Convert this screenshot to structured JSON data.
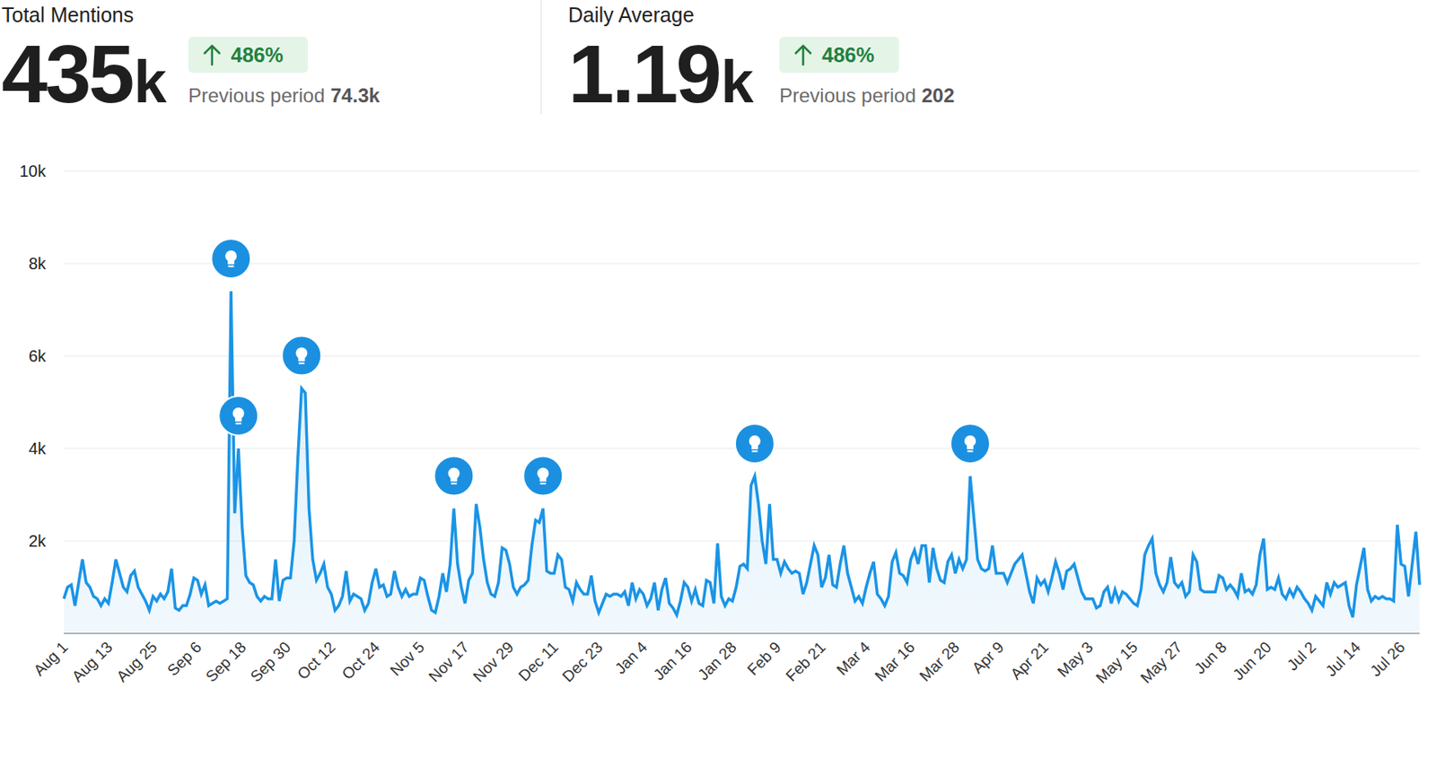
{
  "header": {
    "blocks": [
      {
        "title": "Total Mentions",
        "value": "435k",
        "change": "486%",
        "previous_label": "Previous period",
        "previous_value": "74.3k"
      },
      {
        "title": "Daily Average",
        "value": "1.19k",
        "change": "486%",
        "previous_label": "Previous period",
        "previous_value": "202"
      }
    ]
  },
  "chart_data": {
    "type": "area",
    "color": "#1a94e6",
    "grid": true,
    "ylim": [
      0,
      10000
    ],
    "yticks": [
      {
        "value": 2000,
        "label": "2k"
      },
      {
        "value": 4000,
        "label": "4k"
      },
      {
        "value": 6000,
        "label": "6k"
      },
      {
        "value": 8000,
        "label": "8k"
      },
      {
        "value": 10000,
        "label": "10k"
      }
    ],
    "events": [
      45,
      47,
      64,
      105,
      129,
      186,
      244
    ],
    "categories": [
      "Aug 1",
      null,
      null,
      null,
      null,
      null,
      null,
      null,
      null,
      null,
      null,
      null,
      "Aug 13",
      null,
      null,
      null,
      null,
      null,
      null,
      null,
      null,
      null,
      null,
      null,
      "Aug 25",
      null,
      null,
      null,
      null,
      null,
      null,
      null,
      null,
      null,
      null,
      null,
      "Sep 6",
      null,
      null,
      null,
      null,
      null,
      null,
      null,
      null,
      null,
      null,
      null,
      "Sep 18",
      null,
      null,
      null,
      null,
      null,
      null,
      null,
      null,
      null,
      null,
      null,
      "Sep 30",
      null,
      null,
      null,
      null,
      null,
      null,
      null,
      null,
      null,
      null,
      null,
      "Oct 12",
      null,
      null,
      null,
      null,
      null,
      null,
      null,
      null,
      null,
      null,
      null,
      "Oct 24",
      null,
      null,
      null,
      null,
      null,
      null,
      null,
      null,
      null,
      null,
      null,
      "Nov 5",
      null,
      null,
      null,
      null,
      null,
      null,
      null,
      null,
      null,
      null,
      null,
      "Nov 17",
      null,
      null,
      null,
      null,
      null,
      null,
      null,
      null,
      null,
      null,
      null,
      "Nov 29",
      null,
      null,
      null,
      null,
      null,
      null,
      null,
      null,
      null,
      null,
      null,
      "Dec 11",
      null,
      null,
      null,
      null,
      null,
      null,
      null,
      null,
      null,
      null,
      null,
      "Dec 23",
      null,
      null,
      null,
      null,
      null,
      null,
      null,
      null,
      null,
      null,
      null,
      "Jan 4",
      null,
      null,
      null,
      null,
      null,
      null,
      null,
      null,
      null,
      null,
      null,
      "Jan 16",
      null,
      null,
      null,
      null,
      null,
      null,
      null,
      null,
      null,
      null,
      null,
      "Jan 28",
      null,
      null,
      null,
      null,
      null,
      null,
      null,
      null,
      null,
      null,
      null,
      "Feb 9",
      null,
      null,
      null,
      null,
      null,
      null,
      null,
      null,
      null,
      null,
      null,
      "Feb 21",
      null,
      null,
      null,
      null,
      null,
      null,
      null,
      null,
      null,
      null,
      null,
      "Mar 4",
      null,
      null,
      null,
      null,
      null,
      null,
      null,
      null,
      null,
      null,
      null,
      "Mar 16",
      null,
      null,
      null,
      null,
      null,
      null,
      null,
      null,
      null,
      null,
      null,
      "Mar 28",
      null,
      null,
      null,
      null,
      null,
      null,
      null,
      null,
      null,
      null,
      null,
      "Apr 9",
      null,
      null,
      null,
      null,
      null,
      null,
      null,
      null,
      null,
      null,
      null,
      "Apr 21",
      null,
      null,
      null,
      null,
      null,
      null,
      null,
      null,
      null,
      null,
      null,
      "May 3",
      null,
      null,
      null,
      null,
      null,
      null,
      null,
      null,
      null,
      null,
      null,
      "May 15",
      null,
      null,
      null,
      null,
      null,
      null,
      null,
      null,
      null,
      null,
      null,
      "May 27",
      null,
      null,
      null,
      null,
      null,
      null,
      null,
      null,
      null,
      null,
      null,
      "Jun 8",
      null,
      null,
      null,
      null,
      null,
      null,
      null,
      null,
      null,
      null,
      null,
      "Jun 20",
      null,
      null,
      null,
      null,
      null,
      null,
      null,
      null,
      null,
      null,
      null,
      "Jul 2",
      null,
      null,
      null,
      null,
      null,
      null,
      null,
      null,
      null,
      null,
      null,
      "Jul 14",
      null,
      null,
      null,
      null,
      null,
      null,
      null,
      null,
      null,
      null,
      null,
      "Jul 26",
      null,
      null,
      null,
      null,
      null
    ],
    "values": [
      750,
      1000,
      1050,
      600,
      1100,
      1600,
      1100,
      1000,
      800,
      750,
      600,
      750,
      650,
      1100,
      1600,
      1300,
      1000,
      900,
      1250,
      1350,
      1000,
      850,
      700,
      500,
      800,
      700,
      850,
      750,
      900,
      1400,
      550,
      500,
      600,
      600,
      850,
      1200,
      1150,
      850,
      1050,
      600,
      650,
      700,
      650,
      700,
      750,
      7400,
      2600,
      4000,
      2300,
      1250,
      1100,
      1050,
      800,
      700,
      800,
      750,
      750,
      1600,
      700,
      1150,
      1200,
      1200,
      2000,
      3800,
      5300,
      5200,
      2700,
      1600,
      1150,
      1300,
      1500,
      1000,
      850,
      500,
      600,
      800,
      1350,
      700,
      850,
      800,
      750,
      500,
      650,
      1100,
      1400,
      1000,
      1050,
      800,
      850,
      1350,
      1000,
      800,
      950,
      800,
      850,
      850,
      1200,
      1150,
      800,
      500,
      450,
      800,
      1300,
      900,
      1500,
      2700,
      1500,
      1000,
      650,
      1150,
      1300,
      2800,
      2300,
      1600,
      1100,
      850,
      800,
      1100,
      1850,
      1800,
      1500,
      1000,
      850,
      1000,
      1050,
      1150,
      1900,
      2450,
      2400,
      2700,
      1350,
      1300,
      1300,
      1700,
      1600,
      1000,
      950,
      700,
      1100,
      950,
      850,
      850,
      1250,
      700,
      450,
      650,
      850,
      800,
      850,
      850,
      800,
      900,
      600,
      1100,
      750,
      950,
      850,
      600,
      750,
      1100,
      500,
      950,
      1200,
      650,
      550,
      400,
      700,
      1100,
      1000,
      700,
      950,
      650,
      600,
      1150,
      1100,
      650,
      1950,
      800,
      600,
      750,
      700,
      1000,
      1450,
      1500,
      1400,
      3200,
      3400,
      2800,
      2000,
      1500,
      2800,
      1600,
      1600,
      1300,
      1550,
      1400,
      1300,
      1350,
      1300,
      850,
      1100,
      1500,
      1900,
      1700,
      1000,
      1200,
      1700,
      1050,
      1000,
      1500,
      1900,
      1300,
      1000,
      700,
      800,
      650,
      1000,
      1300,
      1550,
      850,
      750,
      600,
      800,
      1550,
      1750,
      1300,
      1250,
      1100,
      1600,
      1800,
      1500,
      1900,
      1900,
      1100,
      1850,
      1400,
      1150,
      1100,
      1550,
      1700,
      1300,
      1600,
      1400,
      1600,
      3400,
      2500,
      1600,
      1400,
      1350,
      1400,
      1900,
      1300,
      1300,
      1300,
      1100,
      1300,
      1500,
      1600,
      1700,
      1300,
      900,
      650,
      1200,
      1050,
      1150,
      900,
      1200,
      1550,
      1300,
      950,
      1350,
      1400,
      1500,
      1200,
      900,
      750,
      750,
      750,
      550,
      600,
      900,
      1000,
      650,
      950,
      700,
      900,
      850,
      750,
      650,
      600,
      950,
      1700,
      1900,
      2050,
      1300,
      1050,
      900,
      1100,
      1650,
      1100,
      1000,
      1100,
      800,
      900,
      1700,
      1550,
      950,
      900,
      900,
      900,
      900,
      1250,
      1200,
      950,
      1050,
      950,
      800,
      1300,
      900,
      950,
      850,
      1050,
      1700,
      2050,
      950,
      1000,
      950,
      1200,
      850,
      750,
      950,
      800,
      1000,
      900,
      750,
      650,
      500,
      800,
      700,
      600,
      1100,
      850,
      1100,
      1000,
      1050,
      1100,
      600,
      350,
      1050,
      1450,
      1850,
      950,
      700,
      800,
      750,
      800,
      750,
      750,
      700,
      2350,
      1500,
      1450,
      800,
      1500,
      2200,
      1050
    ]
  }
}
